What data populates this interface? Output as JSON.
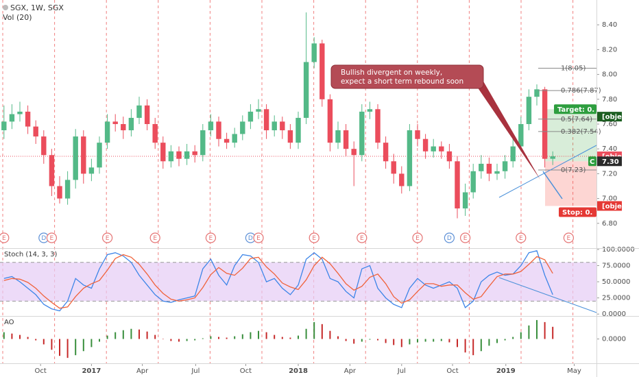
{
  "chart_data": [
    {
      "type": "candlestick",
      "title": "SGX, 1W, SGX",
      "subtitle": "Vol (20)",
      "up_color": "#53b987",
      "down_color": "#eb4d5c",
      "open": [
        7.55,
        7.62,
        7.68,
        7.7,
        7.58,
        7.5,
        7.35,
        7.1,
        7.0,
        7.15,
        7.5,
        7.2,
        7.25,
        7.45,
        7.62,
        7.6,
        7.55,
        7.65,
        7.75,
        7.6,
        7.45,
        7.3,
        7.38,
        7.32,
        7.38,
        7.35,
        7.55,
        7.62,
        7.48,
        7.45,
        7.52,
        7.62,
        7.7,
        7.72,
        7.55,
        7.62,
        7.55,
        7.45,
        7.65,
        8.1,
        8.25,
        7.8,
        7.45,
        7.55,
        7.4,
        7.35,
        7.7,
        7.72,
        7.45,
        7.3,
        7.2,
        7.1,
        7.55,
        7.48,
        7.38,
        7.42,
        7.38,
        7.3,
        6.92,
        7.05,
        7.22,
        7.28,
        7.2,
        7.22,
        7.3,
        7.42,
        7.6,
        7.82,
        7.88,
        7.32
      ],
      "high": [
        7.75,
        7.76,
        7.78,
        7.75,
        7.63,
        7.55,
        7.4,
        7.18,
        7.22,
        7.56,
        7.55,
        7.32,
        7.5,
        7.68,
        7.68,
        7.66,
        7.72,
        7.82,
        7.8,
        7.65,
        7.5,
        7.43,
        7.42,
        7.44,
        7.43,
        7.6,
        7.68,
        7.66,
        7.53,
        7.57,
        7.67,
        7.76,
        7.8,
        7.76,
        7.67,
        7.66,
        7.6,
        7.7,
        8.5,
        8.3,
        8.28,
        7.84,
        7.62,
        7.6,
        7.46,
        7.76,
        7.78,
        7.76,
        7.5,
        7.36,
        7.26,
        7.6,
        7.6,
        7.52,
        7.48,
        7.46,
        7.44,
        7.34,
        7.12,
        7.28,
        7.35,
        7.33,
        7.28,
        7.35,
        7.48,
        7.66,
        7.88,
        7.92,
        7.9,
        7.38
      ],
      "low": [
        7.48,
        7.56,
        7.62,
        7.52,
        7.44,
        7.28,
        7.02,
        6.96,
        6.95,
        7.08,
        7.12,
        7.14,
        7.2,
        7.4,
        7.54,
        7.48,
        7.5,
        7.6,
        7.55,
        7.4,
        7.24,
        7.25,
        7.26,
        7.27,
        7.29,
        7.3,
        7.5,
        7.42,
        7.4,
        7.41,
        7.47,
        7.56,
        7.64,
        7.48,
        7.5,
        7.48,
        7.4,
        7.4,
        7.6,
        8.05,
        7.74,
        7.38,
        7.4,
        7.34,
        7.1,
        7.3,
        7.64,
        7.4,
        7.24,
        7.12,
        7.04,
        7.06,
        7.42,
        7.32,
        7.33,
        7.32,
        7.24,
        6.84,
        6.86,
        7.0,
        7.16,
        7.14,
        7.15,
        7.16,
        7.25,
        7.38,
        7.55,
        7.75,
        7.25,
        7.27
      ],
      "close": [
        7.62,
        7.68,
        7.7,
        7.58,
        7.5,
        7.35,
        7.1,
        7.0,
        7.15,
        7.5,
        7.2,
        7.25,
        7.45,
        7.62,
        7.6,
        7.55,
        7.65,
        7.75,
        7.6,
        7.45,
        7.3,
        7.38,
        7.32,
        7.38,
        7.35,
        7.55,
        7.62,
        7.48,
        7.45,
        7.52,
        7.62,
        7.7,
        7.72,
        7.55,
        7.62,
        7.55,
        7.45,
        7.65,
        8.1,
        8.25,
        7.8,
        7.45,
        7.55,
        7.4,
        7.35,
        7.7,
        7.72,
        7.45,
        7.3,
        7.2,
        7.1,
        7.55,
        7.48,
        7.38,
        7.42,
        7.38,
        7.3,
        6.92,
        7.05,
        7.22,
        7.28,
        7.2,
        7.22,
        7.3,
        7.42,
        7.6,
        7.82,
        7.88,
        7.32,
        7.34
      ],
      "xlim": [
        -0.5,
        74.5
      ],
      "xticks": [
        {
          "value": 4.6,
          "label": "Oct"
        },
        {
          "value": 11,
          "label": "2017"
        },
        {
          "value": 17.4,
          "label": "Apr"
        },
        {
          "value": 24.1,
          "label": "Jul"
        },
        {
          "value": 30.4,
          "label": "Oct"
        },
        {
          "value": 37,
          "label": "2018"
        },
        {
          "value": 43.5,
          "label": "Apr"
        },
        {
          "value": 50,
          "label": "Jul"
        },
        {
          "value": 56.4,
          "label": "Oct"
        },
        {
          "value": 63.1,
          "label": "2019"
        },
        {
          "value": 71.7,
          "label": "May"
        }
      ],
      "ylim": [
        6.6,
        8.6
      ],
      "yticks": [
        {
          "value": 6.8,
          "label": "6.80"
        },
        {
          "value": 7,
          "label": "7.00"
        },
        {
          "value": 7.2,
          "label": "7.20"
        },
        {
          "value": 7.4,
          "label": "7.40"
        },
        {
          "value": 7.6,
          "label": "7.60"
        },
        {
          "value": 7.8,
          "label": "7.80"
        },
        {
          "value": 8,
          "label": "8.00"
        },
        {
          "value": 8.2,
          "label": "8.20"
        },
        {
          "value": 8.4,
          "label": "8.40"
        }
      ],
      "price_labels": [
        {
          "value": 7.66,
          "color": "#1b5e20"
        },
        {
          "value": 7.34,
          "color": "#eb4d5c"
        },
        {
          "value": 7.3,
          "label": "7.30",
          "color": "#2b2b2b"
        },
        {
          "value": 6.94,
          "color": "#e53935"
        }
      ],
      "fibonacci": [
        {
          "value": 8.05,
          "label": "1(8.05)"
        },
        {
          "value": 7.87,
          "label": "0.786(7.87)"
        },
        {
          "value": 7.64,
          "label": "0.5(7.64)"
        },
        {
          "value": 7.54,
          "label": "0.382(7.54)"
        },
        {
          "value": 7.23,
          "label": "0(7.23)"
        }
      ],
      "position": {
        "target": {
          "value": 7.72,
          "label": "Target: 0."
        },
        "entry": {
          "value": 7.3,
          "label": "C"
        },
        "stop": {
          "value": 6.94,
          "label": "Stop: 0."
        }
      },
      "annotation": [
        "Bullish divergent on weekly,",
        "expect a short term rebound soon"
      ],
      "events": [
        {
          "x": 0,
          "label": "E",
          "color": "#e57373"
        },
        {
          "x": 5,
          "label": "D",
          "color": "#5c8fd6"
        },
        {
          "x": 6,
          "label": "E",
          "color": "#e57373"
        },
        {
          "x": 13,
          "label": "E",
          "color": "#e57373"
        },
        {
          "x": 19,
          "label": "E",
          "color": "#e57373"
        },
        {
          "x": 26,
          "label": "E",
          "color": "#e57373"
        },
        {
          "x": 31,
          "label": "D",
          "color": "#5c8fd6"
        },
        {
          "x": 32,
          "label": "E",
          "color": "#e57373"
        },
        {
          "x": 39,
          "label": "E",
          "color": "#e57373"
        },
        {
          "x": 45,
          "label": "E",
          "color": "#e57373"
        },
        {
          "x": 52,
          "label": "E",
          "color": "#e57373"
        },
        {
          "x": 56,
          "label": "D",
          "color": "#5c8fd6"
        },
        {
          "x": 58,
          "label": "E",
          "color": "#e57373"
        },
        {
          "x": 65,
          "label": "E",
          "color": "#e57373"
        },
        {
          "x": 71,
          "label": "E",
          "color": "#e57373"
        }
      ]
    },
    {
      "type": "line",
      "title": "Stoch (14, 3, 3)",
      "ylim": [
        -3,
        101
      ],
      "yticks": [
        {
          "value": 0,
          "label": "0.0000"
        },
        {
          "value": 25,
          "label": "25.0000"
        },
        {
          "value": 50,
          "label": "50.0000"
        },
        {
          "value": 75,
          "label": "75.0000"
        },
        {
          "value": 100,
          "label": "100.0000"
        }
      ],
      "bands": [
        20,
        80
      ],
      "band_color": "#e6ccf5",
      "series": [
        {
          "color": "#3d85e8",
          "values": [
            55,
            58,
            50,
            40,
            30,
            15,
            8,
            5,
            20,
            55,
            45,
            40,
            70,
            92,
            95,
            90,
            80,
            60,
            45,
            30,
            20,
            18,
            22,
            25,
            28,
            70,
            85,
            60,
            45,
            75,
            92,
            90,
            80,
            50,
            55,
            40,
            30,
            45,
            85,
            95,
            85,
            55,
            50,
            35,
            25,
            70,
            75,
            40,
            25,
            15,
            10,
            40,
            55,
            45,
            40,
            45,
            50,
            40,
            10,
            20,
            50,
            60,
            65,
            60,
            62,
            75,
            95,
            98,
            60,
            30
          ]
        },
        {
          "color": "#f0623a",
          "values": [
            52,
            55,
            54,
            49,
            40,
            28,
            18,
            9,
            11,
            27,
            40,
            47,
            52,
            68,
            86,
            92,
            88,
            77,
            62,
            45,
            32,
            23,
            20,
            22,
            25,
            41,
            61,
            72,
            63,
            60,
            71,
            86,
            88,
            73,
            62,
            48,
            42,
            38,
            53,
            75,
            88,
            78,
            63,
            47,
            37,
            43,
            57,
            62,
            47,
            27,
            17,
            22,
            35,
            47,
            47,
            43,
            45,
            45,
            33,
            23,
            27,
            43,
            58,
            62,
            62,
            66,
            77,
            89,
            84,
            63
          ]
        }
      ]
    },
    {
      "type": "bar",
      "title": "AO",
      "ylim": [
        -0.36,
        0.33
      ],
      "yticks": [
        {
          "value": 0,
          "label": "0.0000"
        }
      ],
      "up_color": "#388e3c",
      "down_color": "#c62828",
      "values": [
        0.1,
        0.08,
        0.06,
        0.03,
        -0.02,
        -0.08,
        -0.16,
        -0.25,
        -0.28,
        -0.24,
        -0.18,
        -0.12,
        -0.04,
        0.05,
        0.1,
        0.13,
        0.15,
        0.14,
        0.11,
        0.06,
        0.0,
        -0.03,
        -0.04,
        -0.03,
        -0.02,
        0.01,
        0.04,
        0.03,
        0.02,
        0.04,
        0.07,
        0.1,
        0.12,
        0.1,
        0.06,
        0.03,
        0.02,
        0.05,
        0.15,
        0.25,
        0.22,
        0.12,
        0.04,
        -0.03,
        -0.07,
        -0.04,
        -0.01,
        -0.02,
        -0.06,
        -0.09,
        -0.12,
        -0.08,
        -0.05,
        -0.04,
        -0.04,
        -0.03,
        -0.05,
        -0.12,
        -0.2,
        -0.24,
        -0.18,
        -0.1,
        -0.06,
        -0.02,
        0.03,
        0.1,
        0.2,
        0.28,
        0.25,
        0.18
      ]
    }
  ]
}
